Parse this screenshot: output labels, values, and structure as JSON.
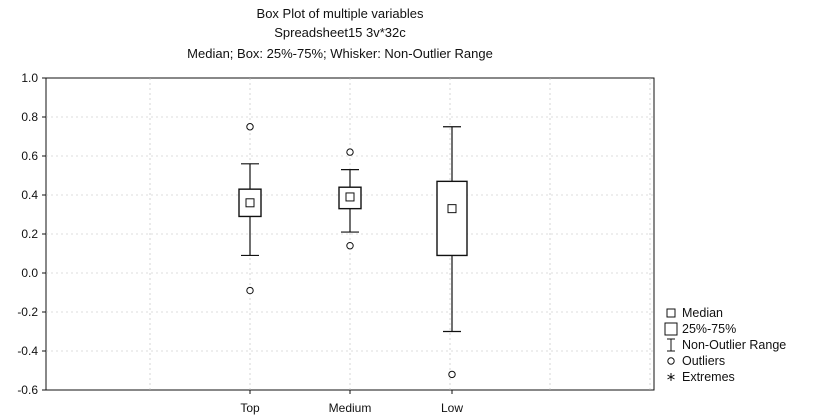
{
  "chart_data": {
    "type": "boxplot",
    "title": "Box Plot of multiple variables",
    "subtitle": "Spreadsheet15 3v*32c",
    "subtitle2": "Median; Box: 25%-75%; Whisker: Non-Outlier Range",
    "categories": [
      "Top",
      "Medium",
      "Low"
    ],
    "ylim": [
      -0.6,
      1.0
    ],
    "yticks": [
      "1.0",
      "0.8",
      "0.6",
      "0.4",
      "0.2",
      "0.0",
      "-0.2",
      "-0.4",
      "-0.6"
    ],
    "ytick_values": [
      1.0,
      0.8,
      0.6,
      0.4,
      0.2,
      0.0,
      -0.2,
      -0.4,
      -0.6
    ],
    "boxes": [
      {
        "name": "Top",
        "median": 0.36,
        "q1": 0.29,
        "q3": 0.43,
        "whisker_low": 0.09,
        "whisker_high": 0.56,
        "outliers": [
          0.75,
          -0.09
        ]
      },
      {
        "name": "Medium",
        "median": 0.39,
        "q1": 0.33,
        "q3": 0.44,
        "whisker_low": 0.21,
        "whisker_high": 0.53,
        "outliers": [
          0.62,
          0.14
        ]
      },
      {
        "name": "Low",
        "median": 0.33,
        "q1": 0.09,
        "q3": 0.47,
        "whisker_low": -0.3,
        "whisker_high": 0.75,
        "outliers": [
          -0.52
        ]
      }
    ],
    "grid": true,
    "legend_position": "bottom-right"
  },
  "legend": {
    "median": "Median",
    "box": "25%-75%",
    "whisker": "Non-Outlier Range",
    "outliers": "Outliers",
    "extremes": "Extremes"
  }
}
